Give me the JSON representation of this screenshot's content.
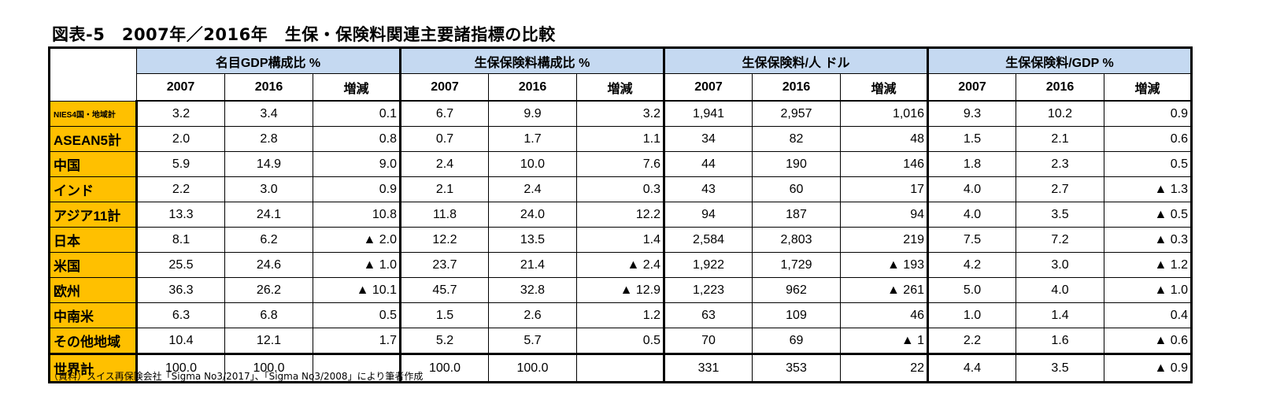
{
  "title": "図表-5　2007年／2016年　生保・保険料関連主要諸指標の比較",
  "groups": [
    {
      "label": "名目GDP構成比 %"
    },
    {
      "label": "生保保険料構成比 %"
    },
    {
      "label": "生保保険料/人 ドル"
    },
    {
      "label": "生保保険料/GDP %"
    }
  ],
  "sub_labels": [
    "2007",
    "2016",
    "増減"
  ],
  "rows": [
    {
      "label": "NIES4国・地域計",
      "v": [
        "3.2",
        "3.4",
        "0.1",
        "6.7",
        "9.9",
        "3.2",
        "1,941",
        "2,957",
        "1,016",
        "9.3",
        "10.2",
        "0.9"
      ]
    },
    {
      "label": "ASEAN5計",
      "v": [
        "2.0",
        "2.8",
        "0.8",
        "0.7",
        "1.7",
        "1.1",
        "34",
        "82",
        "48",
        "1.5",
        "2.1",
        "0.6"
      ]
    },
    {
      "label": "中国",
      "v": [
        "5.9",
        "14.9",
        "9.0",
        "2.4",
        "10.0",
        "7.6",
        "44",
        "190",
        "146",
        "1.8",
        "2.3",
        "0.5"
      ]
    },
    {
      "label": "インド",
      "v": [
        "2.2",
        "3.0",
        "0.9",
        "2.1",
        "2.4",
        "0.3",
        "43",
        "60",
        "17",
        "4.0",
        "2.7",
        "▲ 1.3"
      ]
    },
    {
      "label": "アジア11計",
      "v": [
        "13.3",
        "24.1",
        "10.8",
        "11.8",
        "24.0",
        "12.2",
        "94",
        "187",
        "94",
        "4.0",
        "3.5",
        "▲ 0.5"
      ]
    },
    {
      "label": "日本",
      "v": [
        "8.1",
        "6.2",
        "▲ 2.0",
        "12.2",
        "13.5",
        "1.4",
        "2,584",
        "2,803",
        "219",
        "7.5",
        "7.2",
        "▲ 0.3"
      ]
    },
    {
      "label": "米国",
      "v": [
        "25.5",
        "24.6",
        "▲ 1.0",
        "23.7",
        "21.4",
        "▲ 2.4",
        "1,922",
        "1,729",
        "▲ 193",
        "4.2",
        "3.0",
        "▲ 1.2"
      ]
    },
    {
      "label": "欧州",
      "v": [
        "36.3",
        "26.2",
        "▲ 10.1",
        "45.7",
        "32.8",
        "▲ 12.9",
        "1,223",
        "962",
        "▲ 261",
        "5.0",
        "4.0",
        "▲ 1.0"
      ]
    },
    {
      "label": "中南米",
      "v": [
        "6.3",
        "6.8",
        "0.5",
        "1.5",
        "2.6",
        "1.2",
        "63",
        "109",
        "46",
        "1.0",
        "1.4",
        "0.4"
      ]
    },
    {
      "label": "その他地域",
      "v": [
        "10.4",
        "12.1",
        "1.7",
        "5.2",
        "5.7",
        "0.5",
        "70",
        "69",
        "▲ 1",
        "2.2",
        "1.6",
        "▲ 0.6"
      ]
    },
    {
      "label": "世界計",
      "v": [
        "100.0",
        "100.0",
        "",
        "100.0",
        "100.0",
        "",
        "331",
        "353",
        "22",
        "4.4",
        "3.5",
        "▲ 0.9"
      ]
    }
  ],
  "note": "（資料）スイス再保険会社「Sigma No3/2017」、「Sigma No3/2008」により筆者作成"
}
